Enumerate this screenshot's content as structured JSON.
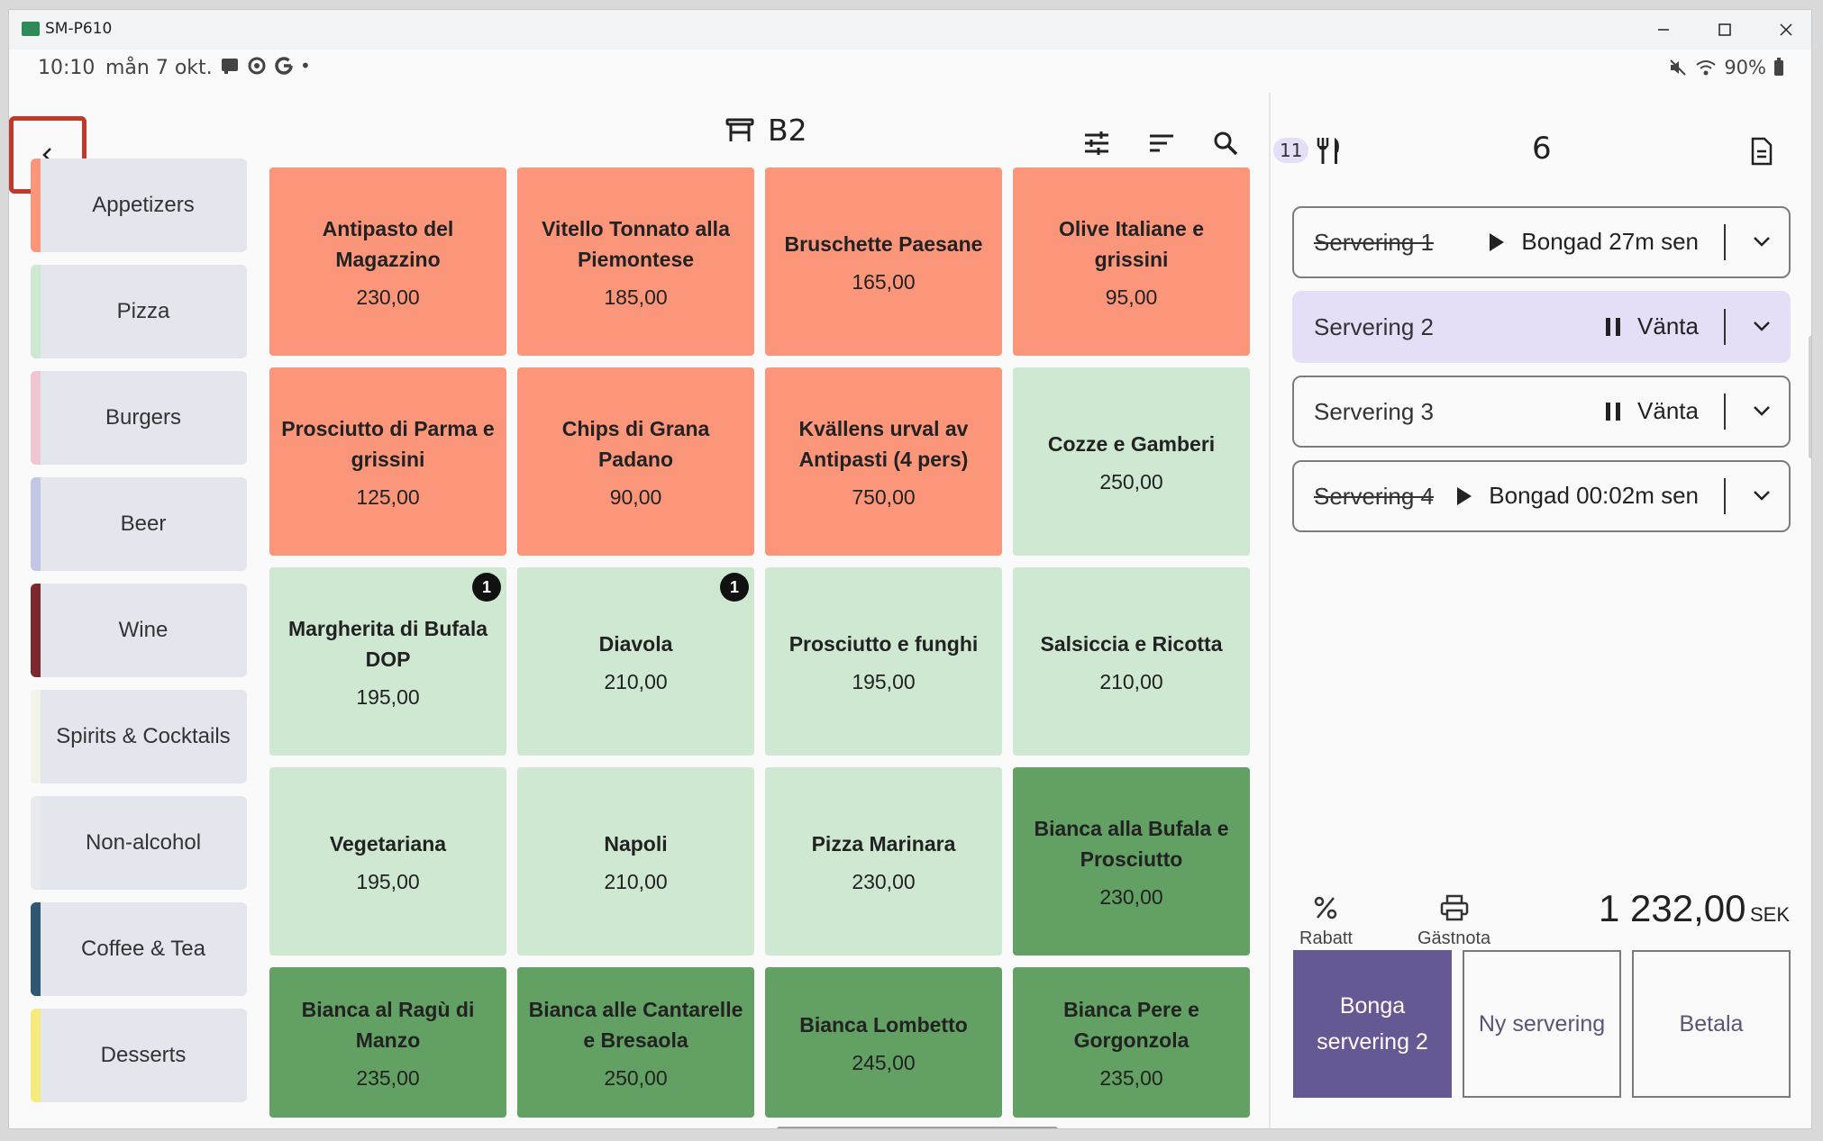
{
  "window": {
    "title": "SM-P610"
  },
  "status": {
    "time": "10:10",
    "date": "mån 7 okt.",
    "dot": "•",
    "battery": "90%"
  },
  "header": {
    "table_name": "B2"
  },
  "categories": [
    {
      "label": "Appetizers",
      "color": "#fb967b"
    },
    {
      "label": "Pizza",
      "color": "#cfe8d2"
    },
    {
      "label": "Burgers",
      "color": "#f0c6d2"
    },
    {
      "label": "Beer",
      "color": "#c3c6e4"
    },
    {
      "label": "Wine",
      "color": "#7a2a2e"
    },
    {
      "label": "Spirits & Cocktails",
      "color": "#f4f3e8"
    },
    {
      "label": "Non-alcohol",
      "color": "#e9eaee"
    },
    {
      "label": "Coffee & Tea",
      "color": "#2f5774"
    },
    {
      "label": "Desserts",
      "color": "#f7ea7c"
    }
  ],
  "products": [
    {
      "name": "Antipasto del Magazzino",
      "price": "230,00"
    },
    {
      "name": "Vitello Tonnato alla Piemontese",
      "price": "185,00"
    },
    {
      "name": "Bruschette Paesane",
      "price": "165,00"
    },
    {
      "name": "Olive Italiane e grissini",
      "price": "95,00"
    },
    {
      "name": "Prosciutto di Parma e grissini",
      "price": "125,00"
    },
    {
      "name": "Chips di Grana Padano",
      "price": "90,00"
    },
    {
      "name": "Kvällens urval av Antipasti (4 pers)",
      "price": "750,00"
    },
    {
      "name": "Cozze e Gamberi",
      "price": "250,00"
    },
    {
      "name": "Margherita di Bufala DOP",
      "price": "195,00",
      "badge": "1"
    },
    {
      "name": "Diavola",
      "price": "210,00",
      "badge": "1"
    },
    {
      "name": "Prosciutto e funghi",
      "price": "195,00"
    },
    {
      "name": "Salsiccia e Ricotta",
      "price": "210,00"
    },
    {
      "name": "Vegetariana",
      "price": "195,00"
    },
    {
      "name": "Napoli",
      "price": "210,00"
    },
    {
      "name": "Pizza Marinara",
      "price": "230,00"
    },
    {
      "name": "Bianca alla Bufala e Prosciutto",
      "price": "230,00"
    },
    {
      "name": "Bianca al Ragù di Manzo",
      "price": "235,00"
    },
    {
      "name": "Bianca alle Cantarelle e Bresaola",
      "price": "250,00"
    },
    {
      "name": "Bianca Lombetto",
      "price": "245,00"
    },
    {
      "name": "Bianca Pere e Gorgonzola",
      "price": "235,00"
    }
  ],
  "order": {
    "guest_badge": "11",
    "item_count": "6",
    "courses": [
      {
        "name": "Servering 1",
        "status": "Bongad 27m sen",
        "state": "sent"
      },
      {
        "name": "Servering 2",
        "status": "Vänta",
        "state": "hold"
      },
      {
        "name": "Servering 3",
        "status": "Vänta",
        "state": "hold"
      },
      {
        "name": "Servering 4",
        "status": "Bongad 00:02m sen",
        "state": "sent"
      }
    ],
    "actions": {
      "discount": "Rabatt",
      "guest_bill": "Gästnota"
    },
    "total_amount": "1 232,00",
    "currency": "SEK",
    "buttons": {
      "fire": "Bonga servering 2",
      "new_course": "Ny servering",
      "pay": "Betala"
    },
    "fire_color": "#665893"
  }
}
